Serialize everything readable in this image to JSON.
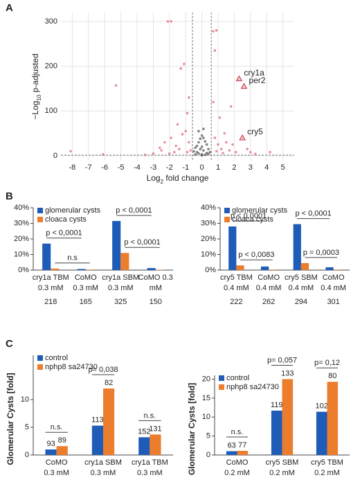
{
  "panel_labels": [
    "A",
    "B",
    "C"
  ],
  "chart_data": [
    {
      "type": "scatter",
      "xlabel": {
        "base": "Log",
        "sub": "2",
        "rest": " fold change"
      },
      "ylabel": {
        "base": "−Log",
        "sub": "10",
        "rest": " p-adjusted"
      },
      "xlim": [
        -8.7,
        5.7
      ],
      "ylim": [
        -11,
        320
      ],
      "xticks": [
        -8,
        -7,
        -6,
        -5,
        -4,
        -3,
        -2,
        -1,
        0,
        1,
        2,
        3,
        4,
        5
      ],
      "yticks": [
        0,
        100,
        200,
        300
      ],
      "grid": true,
      "thresholds": {
        "x": [
          -0.58,
          0.58
        ],
        "y": 1.3
      },
      "series": [
        {
          "color": "#e06a78",
          "x": [
            -8.1,
            -6.1,
            -5.3,
            -3.5,
            -3,
            -2.6,
            -2.5,
            -2.3,
            -2.1,
            -1.9,
            -1.9,
            -1.6,
            -1.5,
            -1.4,
            -1.3,
            -1.1,
            -1.2,
            -1.0,
            -0.9,
            -0.8,
            -0.8,
            -0.7,
            0.7,
            0.7,
            0.8,
            0.9,
            0.8,
            1.0,
            1.1,
            1.2,
            1.4,
            1.5,
            1.7,
            1.8,
            1.9,
            2.1,
            2.8,
            3.0,
            3.3,
            4.2,
            -1.7,
            -2.0,
            1.3,
            0.9,
            -0.9
          ],
          "values": [
            10,
            3,
            157,
            2,
            5,
            18,
            12,
            30,
            300,
            300,
            40,
            22,
            70,
            15,
            195,
            205,
            48,
            55,
            95,
            130,
            30,
            12,
            120,
            278,
            235,
            280,
            40,
            25,
            85,
            15,
            50,
            30,
            12,
            110,
            25,
            8,
            15,
            8,
            4,
            8,
            8,
            5,
            6,
            10,
            8
          ]
        },
        {
          "color": "#555555",
          "x": [
            -0.5,
            -0.4,
            -0.3,
            -0.2,
            -0.1,
            0,
            0.1,
            0.2,
            0.3,
            0.4,
            0.5,
            -0.2,
            0,
            0.2,
            0.1,
            -0.1,
            -0.3,
            0.3,
            0,
            0.1,
            -0.2,
            0.4,
            -0.4,
            0
          ],
          "values": [
            10,
            18,
            22,
            30,
            38,
            45,
            40,
            32,
            25,
            15,
            8,
            5,
            3,
            2,
            12,
            15,
            8,
            6,
            20,
            60,
            55,
            4,
            3,
            1
          ]
        }
      ],
      "highlights": [
        {
          "label": "cry1a",
          "x": 2.3,
          "y": 172
        },
        {
          "label": "per2",
          "x": 2.6,
          "y": 155
        },
        {
          "label": "cry5",
          "x": 2.5,
          "y": 40
        }
      ]
    },
    {
      "type": "bar",
      "categories": [
        "cry1a TBM",
        "CoMO",
        "cry1a SBM",
        "CoMO 0.3"
      ],
      "category_sublabels": [
        "0.3 mM",
        "0.3 mM",
        "0.3 mM",
        "mM"
      ],
      "n": [
        218,
        165,
        325,
        150
      ],
      "ylim": [
        0,
        40
      ],
      "yticks": [
        {
          "value": 0,
          "label": "0%"
        },
        {
          "value": 10,
          "label": "10%"
        },
        {
          "value": 20,
          "label": "20%"
        },
        {
          "value": 30,
          "label": "30%"
        },
        {
          "value": 40,
          "label": "40%"
        }
      ],
      "series": [
        {
          "name": "glomerular cysts",
          "color": "#1f5cb8",
          "values": [
            17,
            0.7,
            31.5,
            1.3
          ]
        },
        {
          "name": "cloaca cysts",
          "color": "#ec7d2c",
          "values": [
            1,
            0.3,
            11,
            0.2
          ]
        }
      ],
      "annotations": [
        {
          "text": "p < 0,0001",
          "series": 0,
          "from": 0,
          "to": 1
        },
        {
          "text": "n.s",
          "series": 1,
          "from": 0,
          "to": 1
        },
        {
          "text": "p < 0,0001",
          "series": 0,
          "from": 2,
          "to": 3
        },
        {
          "text": "p < 0,0001",
          "series": 1,
          "from": 2,
          "to": 3
        }
      ]
    },
    {
      "type": "bar",
      "categories": [
        "cry5 TBM",
        "CoMO",
        "cry5 SBM",
        "CoMO"
      ],
      "category_sublabels": [
        "0.4 mM",
        "0.4 mM",
        "0.4 mM",
        "0.4 mM"
      ],
      "n": [
        222,
        262,
        294,
        301
      ],
      "ylim": [
        0,
        40
      ],
      "yticks": [
        {
          "value": 0,
          "label": "0%"
        },
        {
          "value": 10,
          "label": "10%"
        },
        {
          "value": 20,
          "label": "20%"
        },
        {
          "value": 30,
          "label": "30%"
        },
        {
          "value": 40,
          "label": "40%"
        }
      ],
      "series": [
        {
          "name": "glomerular cysts",
          "color": "#1f5cb8",
          "values": [
            28,
            2.3,
            29.5,
            1.8
          ]
        },
        {
          "name": "cloaca cysts",
          "color": "#ec7d2c",
          "values": [
            3,
            0.3,
            4.5,
            0.3
          ]
        }
      ],
      "annotations": [
        {
          "text": "p < 0,0001",
          "series": 0,
          "from": 0,
          "to": 1
        },
        {
          "text": "p < 0,0083",
          "series": 1,
          "from": 0,
          "to": 1
        },
        {
          "text": "p < 0,0001",
          "series": 0,
          "from": 2,
          "to": 3
        },
        {
          "text": "p = 0,0003",
          "series": 1,
          "from": 2,
          "to": 3
        }
      ]
    },
    {
      "type": "bar",
      "ylabel": "Glomerular Cysts [fold]",
      "categories": [
        "CoMO",
        "cry1a SBM",
        "cry1a TBM"
      ],
      "category_sublabels": [
        "0.3 mM",
        "0.3 mM",
        "0.3 mM"
      ],
      "ylim": [
        0,
        18
      ],
      "yticks": [
        0,
        5,
        10
      ],
      "series": [
        {
          "name": "control",
          "color": "#1f5cb8",
          "values": [
            1,
            5.3,
            3.2
          ],
          "counts": [
            93,
            113,
            152
          ]
        },
        {
          "name": "nphp8 sa24730",
          "color": "#ec7d2c",
          "values": [
            1.6,
            12,
            3.7
          ],
          "counts": [
            89,
            82,
            131
          ]
        }
      ],
      "annotations": [
        {
          "text": "n.s.",
          "from": 0,
          "to": 0
        },
        {
          "text": "p= 0,038",
          "from": 1,
          "to": 1
        },
        {
          "text": "n.s.",
          "from": 2,
          "to": 2
        }
      ]
    },
    {
      "type": "bar",
      "ylabel": "Glomerular Cysts [fold]",
      "categories": [
        "CoMO",
        "cry5 SBM",
        "cry5 TBM"
      ],
      "category_sublabels": [
        "0.2 mM",
        "0.2 mM",
        "0.2 mM"
      ],
      "ylim": [
        0,
        21
      ],
      "yticks": [
        0,
        5,
        10,
        15,
        20
      ],
      "series": [
        {
          "name": "control",
          "color": "#1f5cb8",
          "values": [
            1,
            11.7,
            11.4
          ],
          "counts": [
            63,
            119,
            102
          ]
        },
        {
          "name": "nphp8 sa24730",
          "color": "#ec7d2c",
          "values": [
            1.1,
            20,
            19.3
          ],
          "counts": [
            77,
            133,
            80
          ]
        }
      ],
      "annotations": [
        {
          "text": "n.s.",
          "from": 0,
          "to": 0
        },
        {
          "text": "p= 0,057",
          "from": 1,
          "to": 1
        },
        {
          "text": "p= 0,12",
          "from": 2,
          "to": 2
        }
      ]
    }
  ]
}
